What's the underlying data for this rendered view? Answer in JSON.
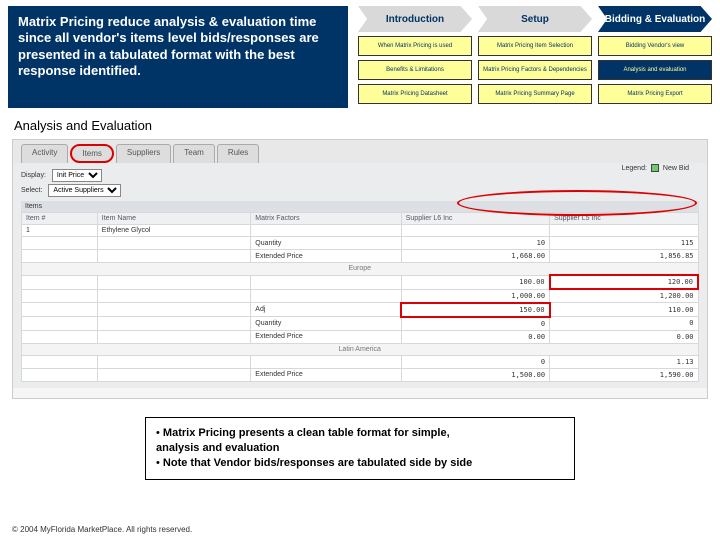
{
  "headline": "Matrix Pricing reduce analysis & evaluation time since all vendor's items level bids/responses are presented in a tabulated format with the best response identified.",
  "nav": {
    "top": [
      {
        "label": "Introduction",
        "active": false
      },
      {
        "label": "Setup",
        "active": false
      },
      {
        "label": "Bidding & Evaluation",
        "active": true
      }
    ],
    "sub": [
      [
        {
          "label": "When Matrix Pricing is used",
          "active": false
        },
        {
          "label": "Matrix Pricing Item Selection",
          "active": false
        },
        {
          "label": "Bidding Vendor's view",
          "active": false
        }
      ],
      [
        {
          "label": "Benefits & Limitations",
          "active": false
        },
        {
          "label": "Matrix Pricing Factors & Dependencies",
          "active": false
        },
        {
          "label": "Analysis and evaluation",
          "active": true
        }
      ],
      [
        {
          "label": "Matrix Pricing Datasheet",
          "active": false
        },
        {
          "label": "Matrix Pricing Summary Page",
          "active": false
        },
        {
          "label": "Matrix Pricing Export",
          "active": false
        }
      ]
    ]
  },
  "section_title": "Analysis and Evaluation",
  "ui": {
    "tabs": [
      "Activity",
      "Items",
      "Suppliers",
      "Team",
      "Rules"
    ],
    "display_label": "Display:",
    "display_value": "Init Price",
    "select_label": "Select:",
    "select_value": "Active Suppliers",
    "legend_label": "Legend:",
    "legend_item": "New Bid",
    "items_hdr": "Items",
    "cols": [
      "Item #",
      "Item Name",
      "Matrix Factors",
      "Supplier L6 Inc",
      "Supplier L5 Inc"
    ],
    "rows": [
      {
        "num": "1",
        "name": "Ethylene Glycol",
        "factor": "",
        "s6": "",
        "s5": ""
      },
      {
        "num": "",
        "name": "",
        "factor": "Quantity",
        "s6": "10",
        "s5": "115"
      },
      {
        "num": "",
        "name": "",
        "factor": "Extended Price",
        "s6": "1,668.00",
        "s5": "1,856.85"
      },
      {
        "region": "Europe"
      },
      {
        "num": "",
        "name": "",
        "factor": "",
        "s6": "100.00",
        "s5": "120.00",
        "s5red": true
      },
      {
        "num": "",
        "name": "",
        "factor": "",
        "s6": "1,000.00",
        "s5": "1,200.00"
      },
      {
        "num": "",
        "name": "",
        "factor": "Adj",
        "s6": "150.00",
        "s5": "110.00",
        "s6red": true
      },
      {
        "num": "",
        "name": "",
        "factor": "Quantity",
        "s6": "0",
        "s5": "0"
      },
      {
        "num": "",
        "name": "",
        "factor": "Extended Price",
        "s6": "0.00",
        "s5": "0.00"
      },
      {
        "region": "Latin America"
      },
      {
        "num": "",
        "name": "",
        "factor": "",
        "s6": "0",
        "s5": "1.13"
      },
      {
        "num": "",
        "name": "",
        "factor": "Extended Price",
        "s6": "1,500.00",
        "s5": "1,590.00"
      }
    ]
  },
  "callout": {
    "line1_pre": "• ",
    "line1_bold": "Matrix Pricing presents a clean table format for simple,",
    "line1b": "  analysis and evaluation",
    "line2_pre": "• ",
    "line2": "Note that Vendor bids/responses are tabulated side by side"
  },
  "footer": "© 2004 MyFlorida MarketPlace. All rights reserved."
}
